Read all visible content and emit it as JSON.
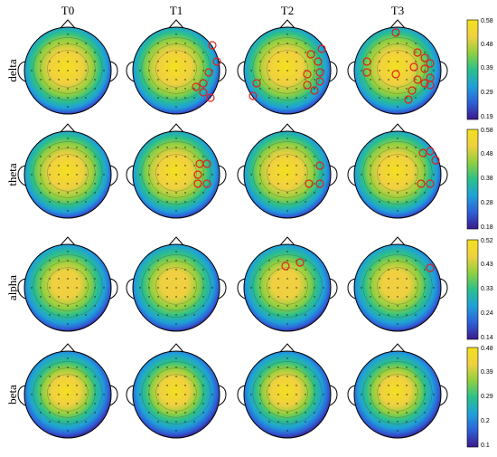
{
  "figure": {
    "columns": [
      "T0",
      "T1",
      "T2",
      "T3"
    ],
    "rows": [
      {
        "band": "delta",
        "colorbar_ticks": [
          "0.58",
          "0.48",
          "0.39",
          "0.29",
          "0.19"
        ]
      },
      {
        "band": "theta",
        "colorbar_ticks": [
          "0.58",
          "0.48",
          "0.38",
          "0.28",
          "0.18"
        ]
      },
      {
        "band": "alpha",
        "colorbar_ticks": [
          "0.52",
          "0.43",
          "0.33",
          "0.24",
          "0.14"
        ]
      },
      {
        "band": "beta",
        "colorbar_ticks": [
          "0.48",
          "0.39",
          "0.29",
          "0.2",
          "0.1"
        ]
      }
    ],
    "colormap": [
      "#3b1a8c",
      "#2f5fd6",
      "#1fa0d8",
      "#2cc08a",
      "#8fd040",
      "#f0d040",
      "#f4e020"
    ],
    "highlight_color": "#e0201e"
  }
}
